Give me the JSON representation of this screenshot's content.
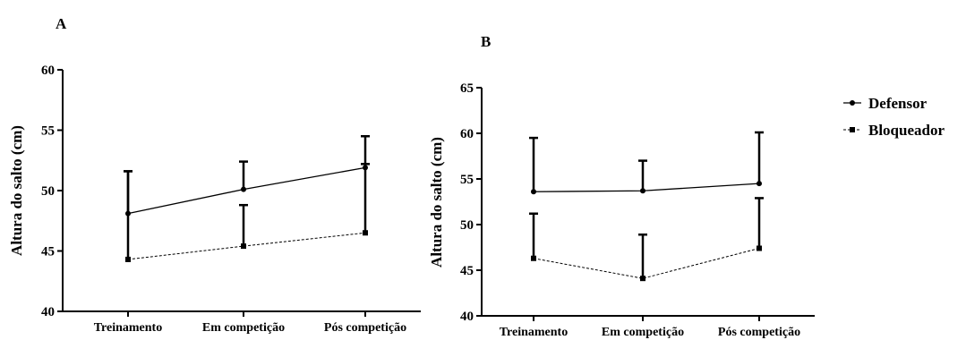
{
  "chart_data": [
    {
      "panel": "A",
      "type": "line",
      "categories": [
        "Treinamento",
        "Em competição",
        "Pós competição"
      ],
      "ylabel": "Altura do salto (cm)",
      "ylim": [
        40,
        60
      ],
      "yticks": [
        40,
        45,
        50,
        55,
        60
      ],
      "series": [
        {
          "name": "Defensor",
          "values": [
            48.1,
            50.1,
            51.9
          ],
          "error": [
            3.5,
            2.3,
            2.6
          ],
          "error_direction": "up",
          "style": "solid",
          "marker": "circle"
        },
        {
          "name": "Bloqueador",
          "values": [
            44.3,
            45.4,
            46.5
          ],
          "error": [
            7.3,
            3.4,
            5.7
          ],
          "error_direction": "up",
          "style": "dashed",
          "marker": "square"
        }
      ]
    },
    {
      "panel": "B",
      "type": "line",
      "categories": [
        "Treinamento",
        "Em competição",
        "Pós competição"
      ],
      "ylabel": "Altura do salto (cm)",
      "ylim": [
        40,
        65
      ],
      "yticks": [
        40,
        45,
        50,
        55,
        60,
        65
      ],
      "series": [
        {
          "name": "Defensor",
          "values": [
            53.6,
            53.7,
            54.5
          ],
          "error": [
            5.9,
            3.3,
            5.6
          ],
          "error_direction": "up",
          "style": "solid",
          "marker": "circle"
        },
        {
          "name": "Bloqueador",
          "values": [
            46.3,
            44.1,
            47.4
          ],
          "error": [
            4.9,
            4.8,
            5.5
          ],
          "error_direction": "up",
          "style": "dashed",
          "marker": "square"
        }
      ]
    }
  ],
  "legend": {
    "position": "right",
    "items": [
      {
        "label": "Defensor",
        "style": "solid",
        "marker": "circle"
      },
      {
        "label": "Bloqueador",
        "style": "dashed",
        "marker": "square"
      }
    ]
  },
  "colors": {
    "line": "#000000"
  }
}
